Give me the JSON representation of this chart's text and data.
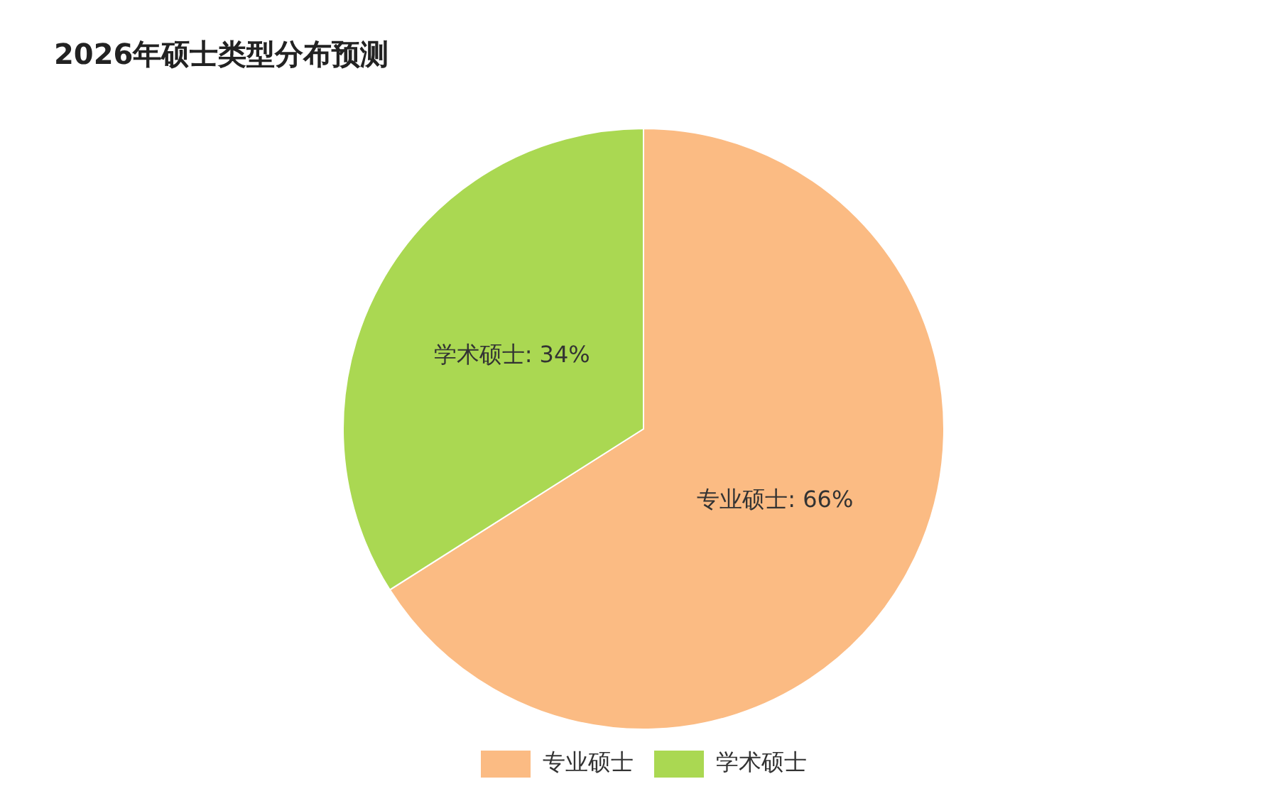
{
  "chart_data": {
    "type": "pie",
    "title": "2026年硕士类型分布预测",
    "categories": [
      "专业硕士",
      "学术硕士"
    ],
    "values": [
      66,
      34
    ],
    "colors": [
      "#fbbb83",
      "#aad852"
    ],
    "value_labels": [
      "专业硕士: 66%",
      "学术硕士: 34%"
    ],
    "legend": "bottom"
  }
}
